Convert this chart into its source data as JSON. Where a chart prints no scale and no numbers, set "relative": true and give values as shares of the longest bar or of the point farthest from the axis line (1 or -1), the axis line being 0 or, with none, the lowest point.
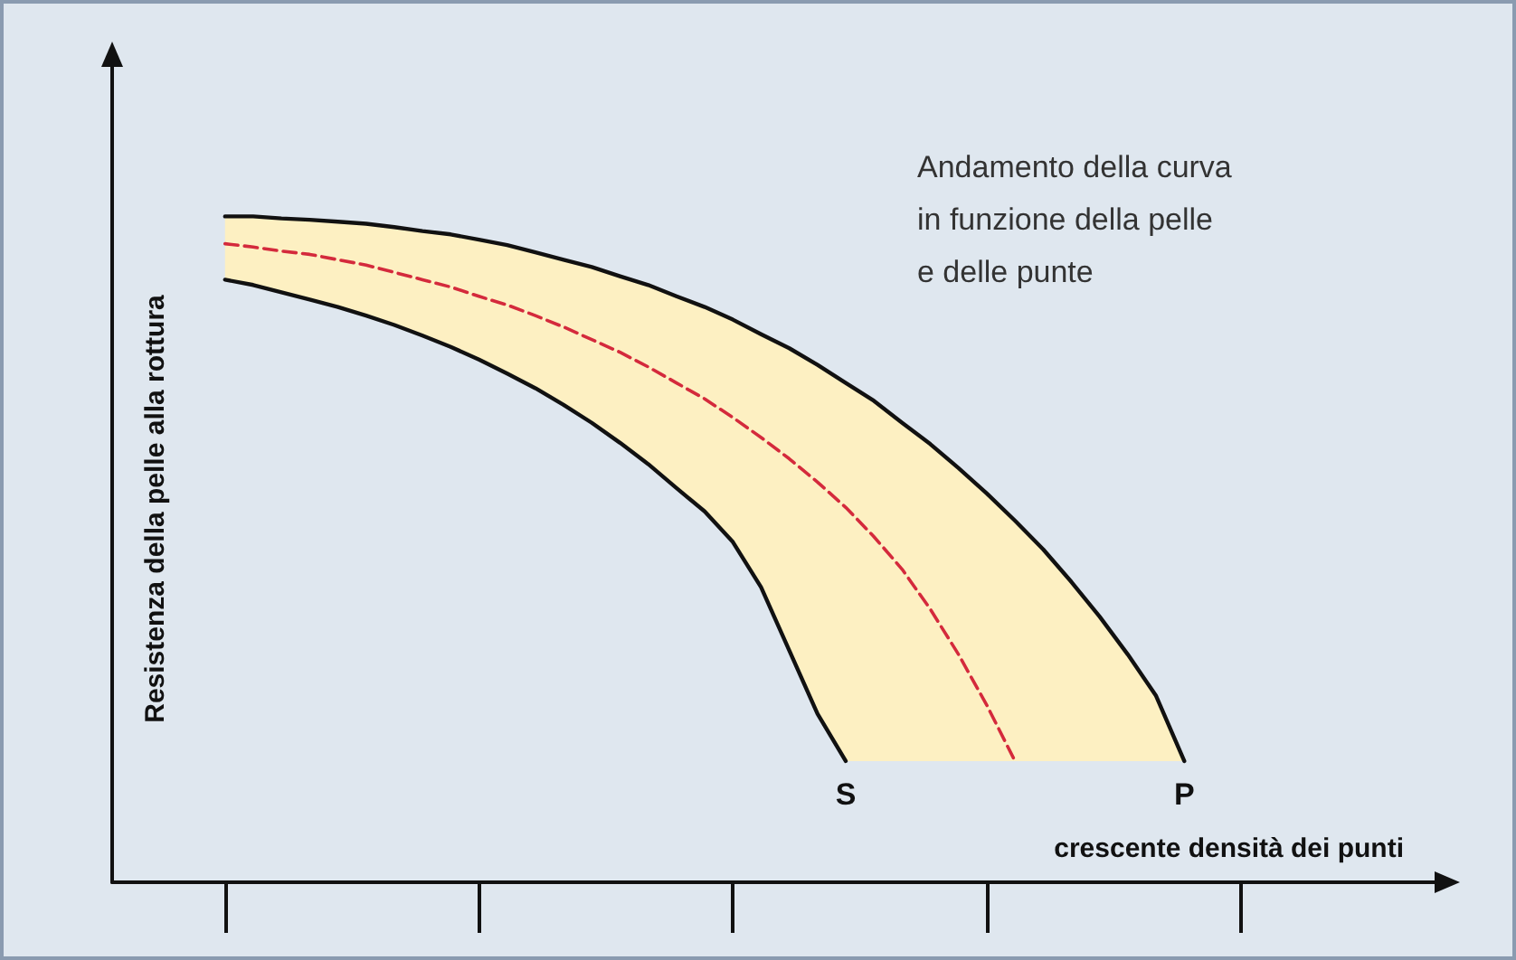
{
  "chart_data": {
    "type": "line",
    "relative": true,
    "xlabel": "crescente densità dei punti",
    "ylabel": "Resistenza della pelle alla rottura",
    "annotations": [
      "Andamento della curva\nin funzione della pelle\ne delle punte",
      "S",
      "P"
    ],
    "categories": [
      null,
      null,
      null,
      null,
      null,
      null,
      null,
      null,
      null,
      null,
      null,
      null,
      null,
      null,
      null,
      null,
      null,
      null,
      null,
      null,
      null,
      null,
      null,
      null,
      null,
      null,
      null,
      null,
      null,
      null,
      null,
      null,
      null,
      null,
      null,
      null,
      null,
      null,
      null,
      null,
      null,
      null,
      null,
      null,
      null,
      null,
      null,
      null
    ],
    "marker": "none",
    "grid": false,
    "series": [
      {
        "color": "#111111",
        "values": [
          null,
          null,
          null,
          null,
          1.0,
          1.0,
          0.997,
          0.995,
          0.992,
          0.989,
          0.984,
          0.978,
          0.973,
          0.965,
          0.957,
          0.946,
          0.935,
          0.924,
          0.91,
          0.897,
          0.88,
          0.864,
          0.845,
          0.823,
          0.802,
          0.777,
          0.75,
          0.723,
          0.69,
          0.658,
          0.622,
          0.584,
          0.543,
          0.5,
          0.451,
          0.399,
          0.342,
          0.28,
          0.182,
          null,
          null,
          null,
          null,
          null,
          null,
          null,
          null,
          null
        ]
      },
      {
        "color": "#111111",
        "values": [
          null,
          null,
          null,
          null,
          0.905,
          0.897,
          0.886,
          0.875,
          0.864,
          0.851,
          0.837,
          0.821,
          0.804,
          0.785,
          0.764,
          0.742,
          0.717,
          0.69,
          0.66,
          0.628,
          0.592,
          0.557,
          0.511,
          0.443,
          0.348,
          0.253,
          0.182,
          null,
          null,
          null,
          null,
          null,
          null,
          null,
          null,
          null,
          null,
          null,
          null,
          null,
          null,
          null,
          null,
          null,
          null,
          null,
          null,
          null
        ]
      },
      {
        "color": "#d42a3c",
        "line_style": "dashed",
        "values": [
          null,
          null,
          null,
          null,
          0.959,
          0.954,
          0.948,
          0.943,
          0.935,
          0.927,
          0.916,
          0.905,
          0.894,
          0.88,
          0.867,
          0.851,
          0.834,
          0.815,
          0.796,
          0.774,
          0.75,
          0.726,
          0.698,
          0.668,
          0.636,
          0.601,
          0.563,
          0.519,
          0.47,
          0.41,
          0.342,
          0.266,
          0.182,
          null,
          null,
          null,
          null,
          null,
          null,
          null,
          null,
          null,
          null,
          null,
          null,
          null,
          null,
          null
        ],
        "lower": [
          null,
          null,
          null,
          null,
          0.905,
          0.897,
          0.886,
          0.875,
          0.864,
          0.851,
          0.837,
          0.821,
          0.804,
          0.785,
          0.764,
          0.742,
          0.717,
          0.69,
          0.66,
          0.628,
          0.592,
          0.557,
          0.511,
          0.443,
          0.348,
          0.253,
          0.182,
          0.182,
          0.182,
          0.182,
          0.182,
          0.182,
          0.182,
          0.182,
          0.182,
          0.182,
          0.182,
          0.182,
          0.182,
          null,
          null,
          null,
          null,
          null,
          null,
          null,
          null,
          null
        ],
        "upper": [
          null,
          null,
          null,
          null,
          1.0,
          1.0,
          0.997,
          0.995,
          0.992,
          0.989,
          0.984,
          0.978,
          0.973,
          0.965,
          0.957,
          0.946,
          0.935,
          0.924,
          0.91,
          0.897,
          0.88,
          0.864,
          0.845,
          0.823,
          0.802,
          0.777,
          0.75,
          0.723,
          0.69,
          0.658,
          0.622,
          0.584,
          0.543,
          0.5,
          0.451,
          0.399,
          0.342,
          0.28,
          0.182,
          null,
          null,
          null,
          null,
          null,
          null,
          null,
          null,
          null
        ]
      }
    ]
  }
}
